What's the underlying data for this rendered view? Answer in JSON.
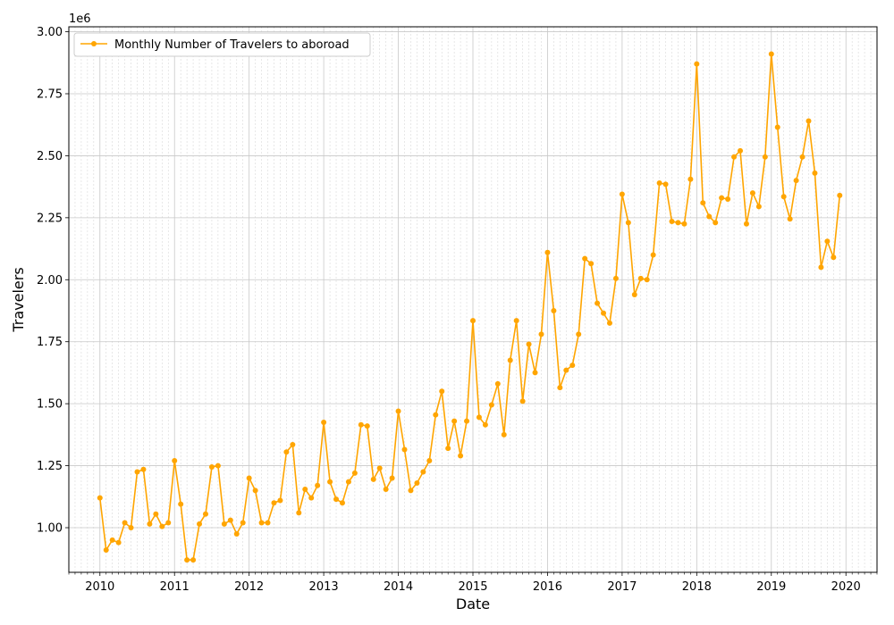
{
  "chart_data": {
    "type": "line",
    "title": "",
    "xlabel": "Date",
    "ylabel": "Travelers",
    "offset_label": "1e6",
    "xlim": [
      "2009-08",
      "2020-06"
    ],
    "ylim": [
      820000,
      3020000
    ],
    "x_ticks": [
      "2010",
      "2011",
      "2012",
      "2013",
      "2014",
      "2015",
      "2016",
      "2017",
      "2018",
      "2019",
      "2020"
    ],
    "y_ticks": [
      "1.00",
      "1.25",
      "1.50",
      "1.75",
      "2.00",
      "2.25",
      "2.50",
      "2.75",
      "3.00"
    ],
    "y_tick_values": [
      1000000,
      1250000,
      1500000,
      1750000,
      2000000,
      2250000,
      2500000,
      2750000,
      3000000
    ],
    "grid": true,
    "minor_grid": true,
    "legend_position": "top-left",
    "series": [
      {
        "name": "Monthly Number of Travelers to aboroad",
        "color": "#ffa500",
        "x": [
          "2010-01",
          "2010-02",
          "2010-03",
          "2010-04",
          "2010-05",
          "2010-06",
          "2010-07",
          "2010-08",
          "2010-09",
          "2010-10",
          "2010-11",
          "2010-12",
          "2011-01",
          "2011-02",
          "2011-03",
          "2011-04",
          "2011-05",
          "2011-06",
          "2011-07",
          "2011-08",
          "2011-09",
          "2011-10",
          "2011-11",
          "2011-12",
          "2012-01",
          "2012-02",
          "2012-03",
          "2012-04",
          "2012-05",
          "2012-06",
          "2012-07",
          "2012-08",
          "2012-09",
          "2012-10",
          "2012-11",
          "2012-12",
          "2013-01",
          "2013-02",
          "2013-03",
          "2013-04",
          "2013-05",
          "2013-06",
          "2013-07",
          "2013-08",
          "2013-09",
          "2013-10",
          "2013-11",
          "2013-12",
          "2014-01",
          "2014-02",
          "2014-03",
          "2014-04",
          "2014-05",
          "2014-06",
          "2014-07",
          "2014-08",
          "2014-09",
          "2014-10",
          "2014-11",
          "2014-12",
          "2015-01",
          "2015-02",
          "2015-03",
          "2015-04",
          "2015-05",
          "2015-06",
          "2015-07",
          "2015-08",
          "2015-09",
          "2015-10",
          "2015-11",
          "2015-12",
          "2016-01",
          "2016-02",
          "2016-03",
          "2016-04",
          "2016-05",
          "2016-06",
          "2016-07",
          "2016-08",
          "2016-09",
          "2016-10",
          "2016-11",
          "2016-12",
          "2017-01",
          "2017-02",
          "2017-03",
          "2017-04",
          "2017-05",
          "2017-06",
          "2017-07",
          "2017-08",
          "2017-09",
          "2017-10",
          "2017-11",
          "2017-12",
          "2018-01",
          "2018-02",
          "2018-03",
          "2018-04",
          "2018-05",
          "2018-06",
          "2018-07",
          "2018-08",
          "2018-09",
          "2018-10",
          "2018-11",
          "2018-12",
          "2019-01",
          "2019-02",
          "2019-03",
          "2019-04",
          "2019-05",
          "2019-06",
          "2019-07",
          "2019-08",
          "2019-09",
          "2019-10",
          "2019-11",
          "2019-12"
        ],
        "values": [
          1120000,
          910000,
          950000,
          940000,
          1020000,
          1000000,
          1225000,
          1235000,
          1015000,
          1055000,
          1005000,
          1020000,
          1270000,
          1095000,
          870000,
          870000,
          1015000,
          1055000,
          1245000,
          1250000,
          1015000,
          1030000,
          975000,
          1020000,
          1200000,
          1150000,
          1020000,
          1020000,
          1100000,
          1110000,
          1305000,
          1335000,
          1060000,
          1155000,
          1120000,
          1170000,
          1425000,
          1185000,
          1115000,
          1100000,
          1185000,
          1220000,
          1415000,
          1410000,
          1195000,
          1240000,
          1155000,
          1200000,
          1470000,
          1315000,
          1150000,
          1180000,
          1225000,
          1270000,
          1455000,
          1550000,
          1320000,
          1430000,
          1290000,
          1430000,
          1835000,
          1445000,
          1415000,
          1495000,
          1580000,
          1375000,
          1675000,
          1835000,
          1510000,
          1740000,
          1625000,
          1780000,
          2110000,
          1875000,
          1565000,
          1635000,
          1655000,
          1780000,
          2085000,
          2065000,
          1905000,
          1865000,
          1825000,
          2005000,
          2345000,
          2230000,
          1940000,
          2005000,
          2000000,
          2100000,
          2390000,
          2385000,
          2235000,
          2230000,
          2225000,
          2405000,
          2870000,
          2310000,
          2255000,
          2230000,
          2330000,
          2325000,
          2495000,
          2520000,
          2225000,
          2350000,
          2295000,
          2495000,
          2910000,
          2615000,
          2335000,
          2245000,
          2400000,
          2495000,
          2640000,
          2430000,
          2050000,
          2155000,
          2090000,
          2340000
        ]
      }
    ]
  }
}
